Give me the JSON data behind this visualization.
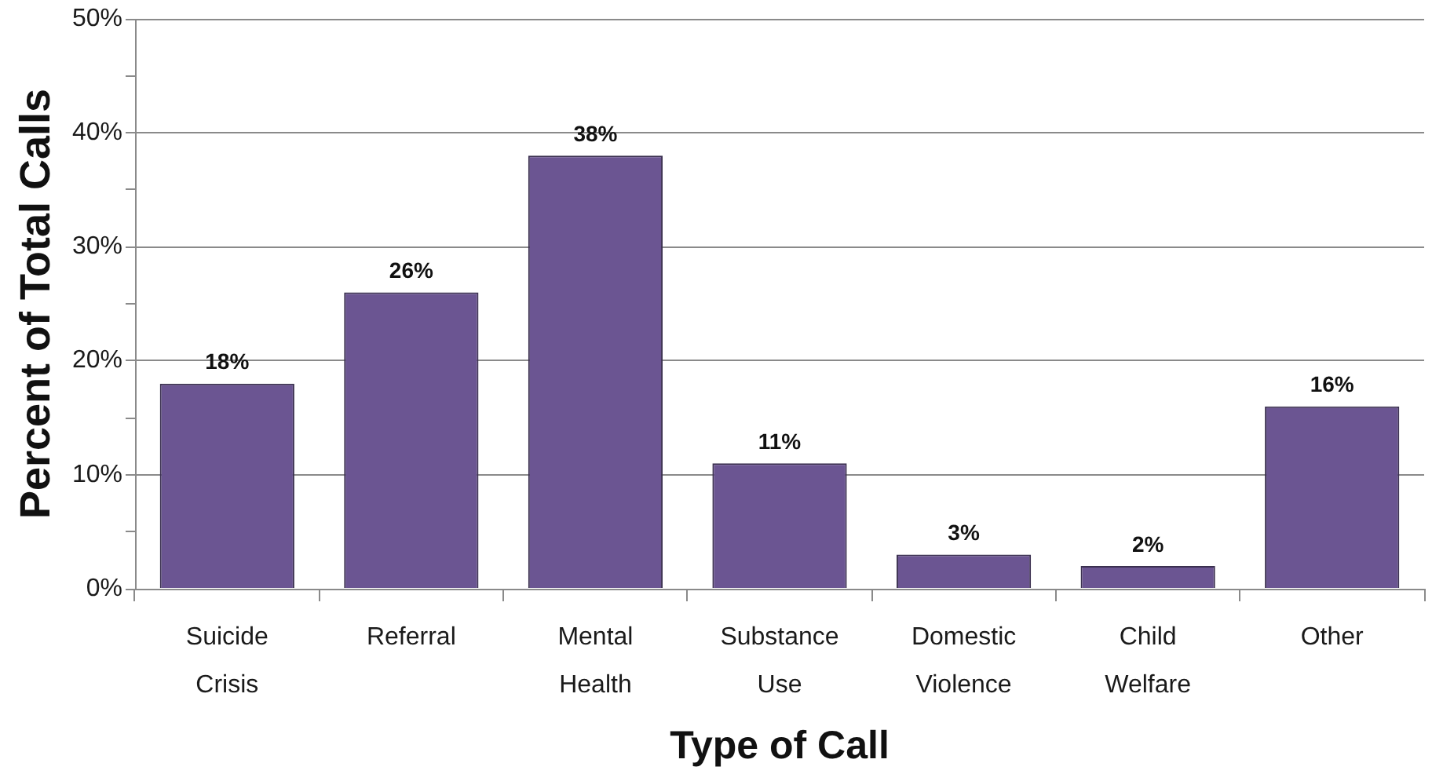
{
  "chart_data": {
    "type": "bar",
    "xlabel": "Type of Call",
    "ylabel": "Percent of Total Calls",
    "categories": [
      "Suicide Crisis",
      "Referral",
      "Mental Health",
      "Substance Use",
      "Domestic Violence",
      "Child Welfare",
      "Other"
    ],
    "values": [
      18,
      26,
      38,
      11,
      3,
      2,
      16
    ],
    "value_labels": [
      "18%",
      "26%",
      "38%",
      "11%",
      "3%",
      "2%",
      "16%"
    ],
    "color": "#6b5592",
    "ylim": [
      0,
      50
    ],
    "yticks": [
      {
        "value": 0,
        "label": "0%"
      },
      {
        "value": 5,
        "label": null
      },
      {
        "value": 10,
        "label": "10%"
      },
      {
        "value": 15,
        "label": null
      },
      {
        "value": 20,
        "label": "20%"
      },
      {
        "value": 25,
        "label": null
      },
      {
        "value": 30,
        "label": "30%"
      },
      {
        "value": 35,
        "label": null
      },
      {
        "value": 40,
        "label": "40%"
      },
      {
        "value": 45,
        "label": null
      },
      {
        "value": 50,
        "label": "50%"
      }
    ],
    "grid": "y"
  }
}
